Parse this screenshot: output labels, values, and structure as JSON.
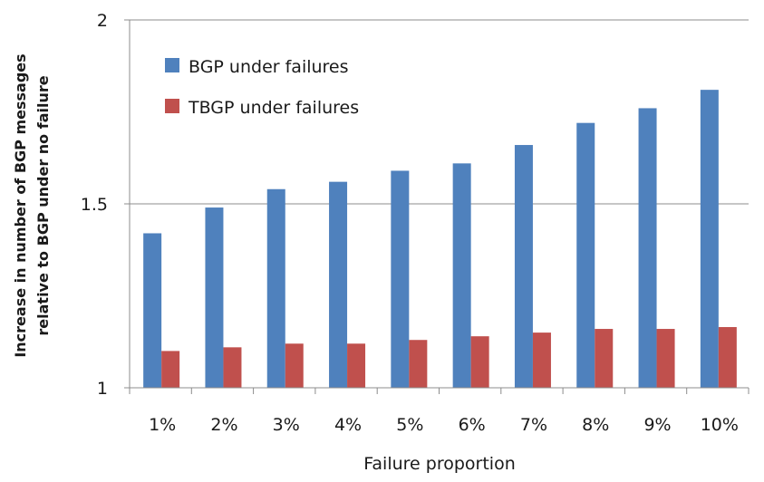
{
  "chart_data": {
    "type": "bar",
    "categories": [
      "1%",
      "2%",
      "3%",
      "4%",
      "5%",
      "6%",
      "7%",
      "8%",
      "9%",
      "10%"
    ],
    "series": [
      {
        "name": "BGP under failures",
        "color": "#4f81bd",
        "values": [
          1.42,
          1.49,
          1.54,
          1.56,
          1.59,
          1.61,
          1.66,
          1.72,
          1.76,
          1.81
        ]
      },
      {
        "name": "TBGP under failures",
        "color": "#c0504d",
        "values": [
          1.1,
          1.11,
          1.12,
          1.12,
          1.13,
          1.14,
          1.15,
          1.16,
          1.16,
          1.165
        ]
      }
    ],
    "xlabel": "Failure proportion",
    "ylabel_lines": [
      "Increase in number of BGP messages",
      "relative to BGP under no failure"
    ],
    "ylim": [
      1,
      2
    ],
    "yticks": [
      "1",
      "1.5",
      "2"
    ],
    "ytick_values": [
      1,
      1.5,
      2
    ],
    "grid": true,
    "legend_position": "top-left"
  }
}
